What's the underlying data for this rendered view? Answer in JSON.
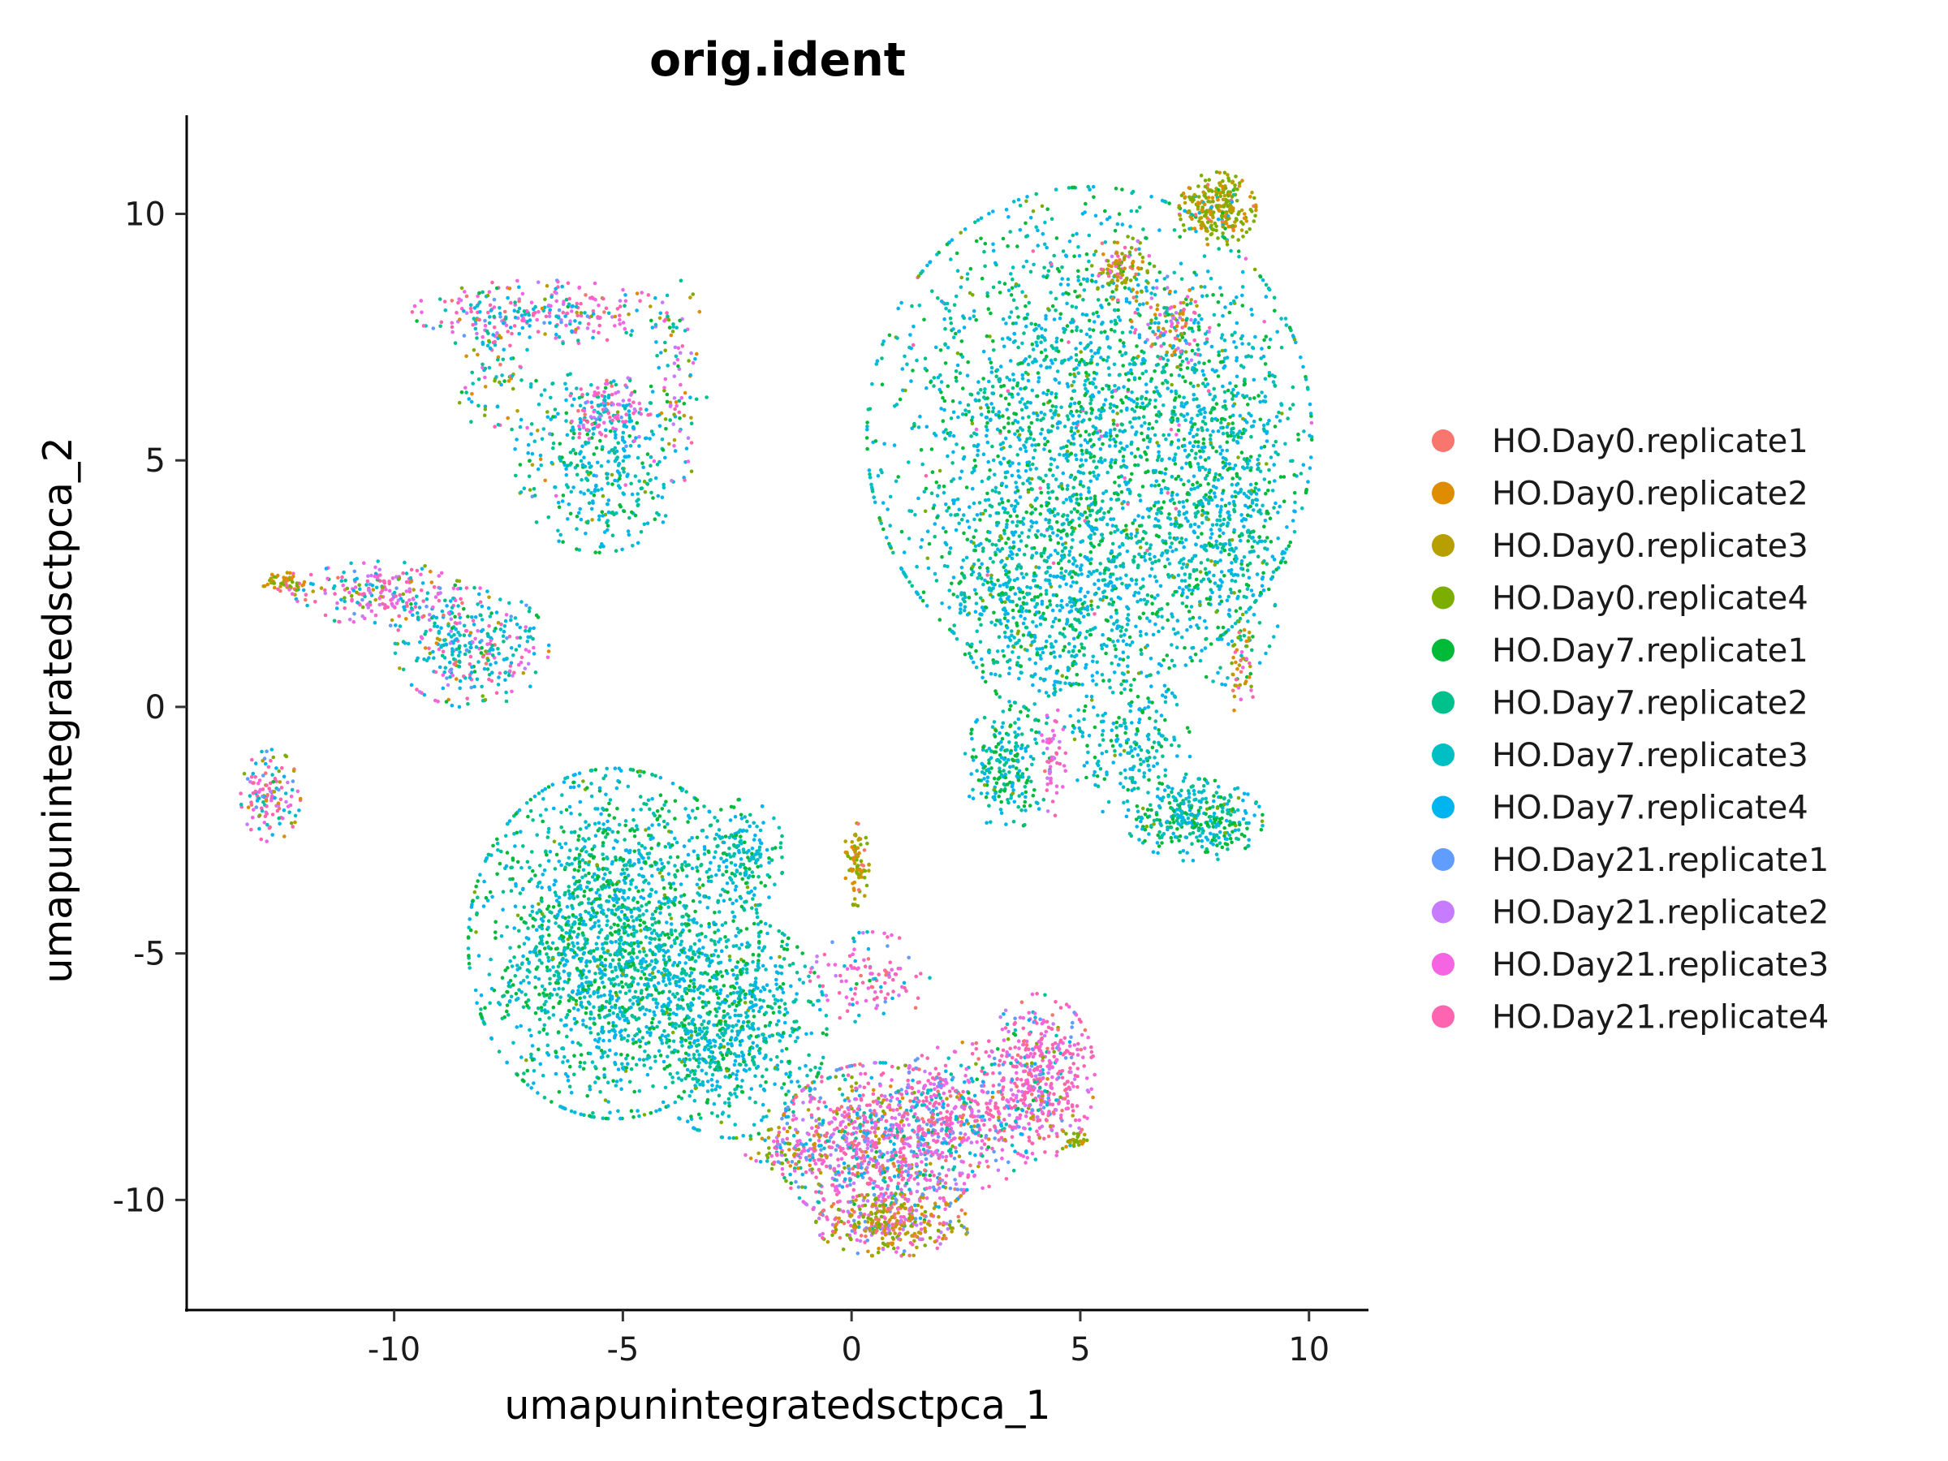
{
  "chart_data": {
    "type": "scatter",
    "title": "orig.ident",
    "xlabel": "umapunintegratedsctpca_1",
    "ylabel": "umapunintegratedsctpca_2",
    "xlim": [
      -14.5,
      11.3
    ],
    "ylim": [
      -12.2,
      12
    ],
    "xticks": [
      -10,
      -5,
      0,
      5,
      10
    ],
    "xtick_labels": [
      "-10",
      "-5",
      "0",
      "5",
      "10"
    ],
    "yticks": [
      -10,
      -5,
      0,
      5,
      10
    ],
    "ytick_labels": [
      "-10",
      "-5",
      "0",
      "5",
      "10"
    ],
    "grid": false,
    "legend_position": "right",
    "series": [
      {
        "name": "HO.Day0.replicate1",
        "color": "#F8766D"
      },
      {
        "name": "HO.Day0.replicate2",
        "color": "#DE8C00"
      },
      {
        "name": "HO.Day0.replicate3",
        "color": "#B79F00"
      },
      {
        "name": "HO.Day0.replicate4",
        "color": "#7CAE00"
      },
      {
        "name": "HO.Day7.replicate1",
        "color": "#00BA38"
      },
      {
        "name": "HO.Day7.replicate2",
        "color": "#00C08B"
      },
      {
        "name": "HO.Day7.replicate3",
        "color": "#00BFC4"
      },
      {
        "name": "HO.Day7.replicate4",
        "color": "#00B4F0"
      },
      {
        "name": "HO.Day21.replicate1",
        "color": "#619CFF"
      },
      {
        "name": "HO.Day21.replicate2",
        "color": "#C77CFF"
      },
      {
        "name": "HO.Day21.replicate3",
        "color": "#F564E3"
      },
      {
        "name": "HO.Day21.replicate4",
        "color": "#FF64B0"
      }
    ],
    "clusters": [
      {
        "x": 5.2,
        "y": 5.5,
        "sx": 2.6,
        "sy": 2.7,
        "n": 2400,
        "mix": [
          0,
          0,
          0,
          0.03,
          0.24,
          0.16,
          0.22,
          0.33,
          0,
          0,
          0.01,
          0.01
        ]
      },
      {
        "x": 5.0,
        "y": 2.0,
        "sx": 1.4,
        "sy": 1.3,
        "n": 500,
        "mix": [
          0,
          0,
          0,
          0.02,
          0.2,
          0.18,
          0.25,
          0.35,
          0,
          0,
          0,
          0
        ]
      },
      {
        "x": 8.2,
        "y": 4.0,
        "sx": 0.8,
        "sy": 1.9,
        "n": 500,
        "mix": [
          0,
          0,
          0,
          0.03,
          0.18,
          0.18,
          0.26,
          0.35,
          0,
          0,
          0,
          0
        ]
      },
      {
        "x": 3.2,
        "y": 2.5,
        "sx": 0.6,
        "sy": 1.0,
        "n": 160,
        "mix": [
          0,
          0,
          0,
          0.03,
          0.25,
          0.18,
          0.22,
          0.32,
          0,
          0,
          0,
          0
        ]
      },
      {
        "x": 3.4,
        "y": -1.2,
        "sx": 0.5,
        "sy": 0.7,
        "n": 220,
        "mix": [
          0,
          0,
          0,
          0.03,
          0.3,
          0.2,
          0.2,
          0.27,
          0,
          0,
          0,
          0
        ]
      },
      {
        "x": 7.5,
        "y": -2.3,
        "sx": 0.8,
        "sy": 0.45,
        "n": 330,
        "mix": [
          0,
          0,
          0,
          0.05,
          0.3,
          0.18,
          0.2,
          0.27,
          0,
          0,
          0,
          0
        ]
      },
      {
        "x": 6.1,
        "y": -0.8,
        "sx": 0.7,
        "sy": 0.8,
        "n": 200,
        "mix": [
          0,
          0,
          0,
          0.02,
          0.2,
          0.18,
          0.28,
          0.32,
          0,
          0,
          0,
          0
        ]
      },
      {
        "x": 5.9,
        "y": 8.9,
        "sx": 0.35,
        "sy": 0.35,
        "n": 100,
        "mix": [
          0.05,
          0.15,
          0.2,
          0.35,
          0,
          0,
          0,
          0,
          0,
          0.05,
          0.1,
          0.1
        ]
      },
      {
        "x": 6.9,
        "y": 7.8,
        "sx": 0.5,
        "sy": 0.5,
        "n": 110,
        "mix": [
          0.06,
          0.1,
          0.1,
          0.1,
          0,
          0.05,
          0.05,
          0.05,
          0.05,
          0.1,
          0.17,
          0.17
        ]
      },
      {
        "x": 4.4,
        "y": -1.1,
        "sx": 0.15,
        "sy": 0.6,
        "n": 50,
        "mix": [
          0.05,
          0,
          0,
          0,
          0,
          0,
          0,
          0,
          0,
          0.2,
          0.35,
          0.4
        ]
      },
      {
        "x": 8.5,
        "y": 0.8,
        "sx": 0.2,
        "sy": 0.5,
        "n": 45,
        "mix": [
          0.1,
          0.2,
          0.2,
          0.2,
          0,
          0,
          0,
          0,
          0,
          0,
          0.15,
          0.15
        ]
      },
      {
        "x": 8.0,
        "y": 10.1,
        "sx": 0.45,
        "sy": 0.4,
        "n": 260,
        "mix": [
          0.02,
          0.18,
          0.25,
          0.45,
          0.02,
          0,
          0.02,
          0.02,
          0,
          0,
          0.02,
          0.02
        ]
      },
      {
        "x": -6.8,
        "y": 8.0,
        "sx": 1.5,
        "sy": 0.35,
        "n": 260,
        "mix": [
          0.02,
          0.03,
          0.03,
          0.04,
          0.02,
          0.05,
          0.08,
          0.08,
          0.05,
          0.12,
          0.24,
          0.24
        ]
      },
      {
        "x": -5.5,
        "y": 5.0,
        "sx": 1.0,
        "sy": 1.0,
        "n": 380,
        "mix": [
          0,
          0.01,
          0.01,
          0.03,
          0.14,
          0.2,
          0.26,
          0.33,
          0.01,
          0,
          0.01,
          0
        ]
      },
      {
        "x": -5.3,
        "y": 6.0,
        "sx": 0.5,
        "sy": 0.4,
        "n": 110,
        "mix": [
          0.02,
          0,
          0,
          0,
          0,
          0.05,
          0.05,
          0.05,
          0.05,
          0.15,
          0.3,
          0.33
        ]
      },
      {
        "x": -3.8,
        "y": 6.6,
        "sx": 0.35,
        "sy": 1.1,
        "n": 90,
        "mix": [
          0.03,
          0.08,
          0.08,
          0.1,
          0.05,
          0.05,
          0.1,
          0.1,
          0,
          0.1,
          0.15,
          0.16
        ]
      },
      {
        "x": -7.8,
        "y": 7.0,
        "sx": 0.5,
        "sy": 0.8,
        "n": 100,
        "mix": [
          0.02,
          0.05,
          0.05,
          0.1,
          0.1,
          0.15,
          0.2,
          0.25,
          0,
          0,
          0.04,
          0.04
        ]
      },
      {
        "x": -8.3,
        "y": 1.2,
        "sx": 0.9,
        "sy": 0.65,
        "n": 330,
        "mix": [
          0.02,
          0.02,
          0.02,
          0.03,
          0.05,
          0.1,
          0.22,
          0.28,
          0.02,
          0.04,
          0.1,
          0.1
        ]
      },
      {
        "x": -10.3,
        "y": 2.3,
        "sx": 1.0,
        "sy": 0.35,
        "n": 220,
        "mix": [
          0.03,
          0.03,
          0.03,
          0.04,
          0.02,
          0.05,
          0.1,
          0.1,
          0.05,
          0.1,
          0.22,
          0.23
        ]
      },
      {
        "x": -12.4,
        "y": 2.5,
        "sx": 0.25,
        "sy": 0.12,
        "n": 55,
        "mix": [
          0.05,
          0.2,
          0.25,
          0.4,
          0,
          0,
          0,
          0,
          0,
          0,
          0.05,
          0.05
        ]
      },
      {
        "x": -12.7,
        "y": -1.8,
        "sx": 0.35,
        "sy": 0.5,
        "n": 130,
        "mix": [
          0.05,
          0.05,
          0.05,
          0.1,
          0.02,
          0.05,
          0.1,
          0.1,
          0.05,
          0.1,
          0.16,
          0.17
        ]
      },
      {
        "x": -5.2,
        "y": -4.8,
        "sx": 1.7,
        "sy": 1.9,
        "n": 2000,
        "mix": [
          0,
          0,
          0,
          0.02,
          0.25,
          0.2,
          0.24,
          0.29,
          0,
          0,
          0,
          0
        ]
      },
      {
        "x": -2.6,
        "y": -6.5,
        "sx": 1.1,
        "sy": 1.2,
        "n": 700,
        "mix": [
          0,
          0,
          0,
          0.02,
          0.2,
          0.2,
          0.27,
          0.31,
          0,
          0,
          0,
          0
        ]
      },
      {
        "x": -2.4,
        "y": -3.0,
        "sx": 0.5,
        "sy": 0.6,
        "n": 160,
        "mix": [
          0,
          0,
          0,
          0.02,
          0.2,
          0.2,
          0.28,
          0.3,
          0,
          0,
          0,
          0
        ]
      },
      {
        "x": 0.6,
        "y": -8.9,
        "sx": 1.2,
        "sy": 0.9,
        "n": 1000,
        "mix": [
          0.04,
          0.03,
          0.04,
          0.04,
          0.02,
          0.03,
          0.05,
          0.08,
          0.12,
          0.12,
          0.18,
          0.25
        ]
      },
      {
        "x": 0.9,
        "y": -10.5,
        "sx": 0.9,
        "sy": 0.35,
        "n": 330,
        "mix": [
          0.12,
          0.15,
          0.2,
          0.25,
          0,
          0,
          0,
          0,
          0.06,
          0.06,
          0.08,
          0.08
        ]
      },
      {
        "x": 4.1,
        "y": -7.5,
        "sx": 0.65,
        "sy": 0.9,
        "n": 470,
        "mix": [
          0.05,
          0.01,
          0.01,
          0.01,
          0.01,
          0.02,
          0.05,
          0.05,
          0.05,
          0.1,
          0.24,
          0.4
        ]
      },
      {
        "x": 2.5,
        "y": -8.3,
        "sx": 0.9,
        "sy": 0.8,
        "n": 350,
        "mix": [
          0.04,
          0.01,
          0.02,
          0.02,
          0.02,
          0.05,
          0.08,
          0.1,
          0.1,
          0.1,
          0.2,
          0.26
        ]
      },
      {
        "x": 0.1,
        "y": -3.2,
        "sx": 0.15,
        "sy": 0.45,
        "n": 80,
        "mix": [
          0.05,
          0.25,
          0.3,
          0.4,
          0,
          0,
          0,
          0,
          0,
          0,
          0,
          0
        ]
      },
      {
        "x": 0.4,
        "y": -5.5,
        "sx": 0.7,
        "sy": 0.5,
        "n": 110,
        "mix": [
          0.05,
          0,
          0,
          0,
          0.02,
          0.03,
          0.08,
          0.1,
          0.05,
          0.1,
          0.27,
          0.3
        ]
      },
      {
        "x": -1.4,
        "y": -9.0,
        "sx": 0.5,
        "sy": 0.25,
        "n": 80,
        "mix": [
          0.05,
          0.15,
          0.15,
          0.2,
          0,
          0,
          0.05,
          0.05,
          0.05,
          0.05,
          0.12,
          0.13
        ]
      },
      {
        "x": 4.9,
        "y": -8.8,
        "sx": 0.2,
        "sy": 0.15,
        "n": 30,
        "mix": [
          0,
          0.2,
          0.3,
          0.5,
          0,
          0,
          0,
          0,
          0,
          0,
          0,
          0
        ]
      }
    ]
  }
}
